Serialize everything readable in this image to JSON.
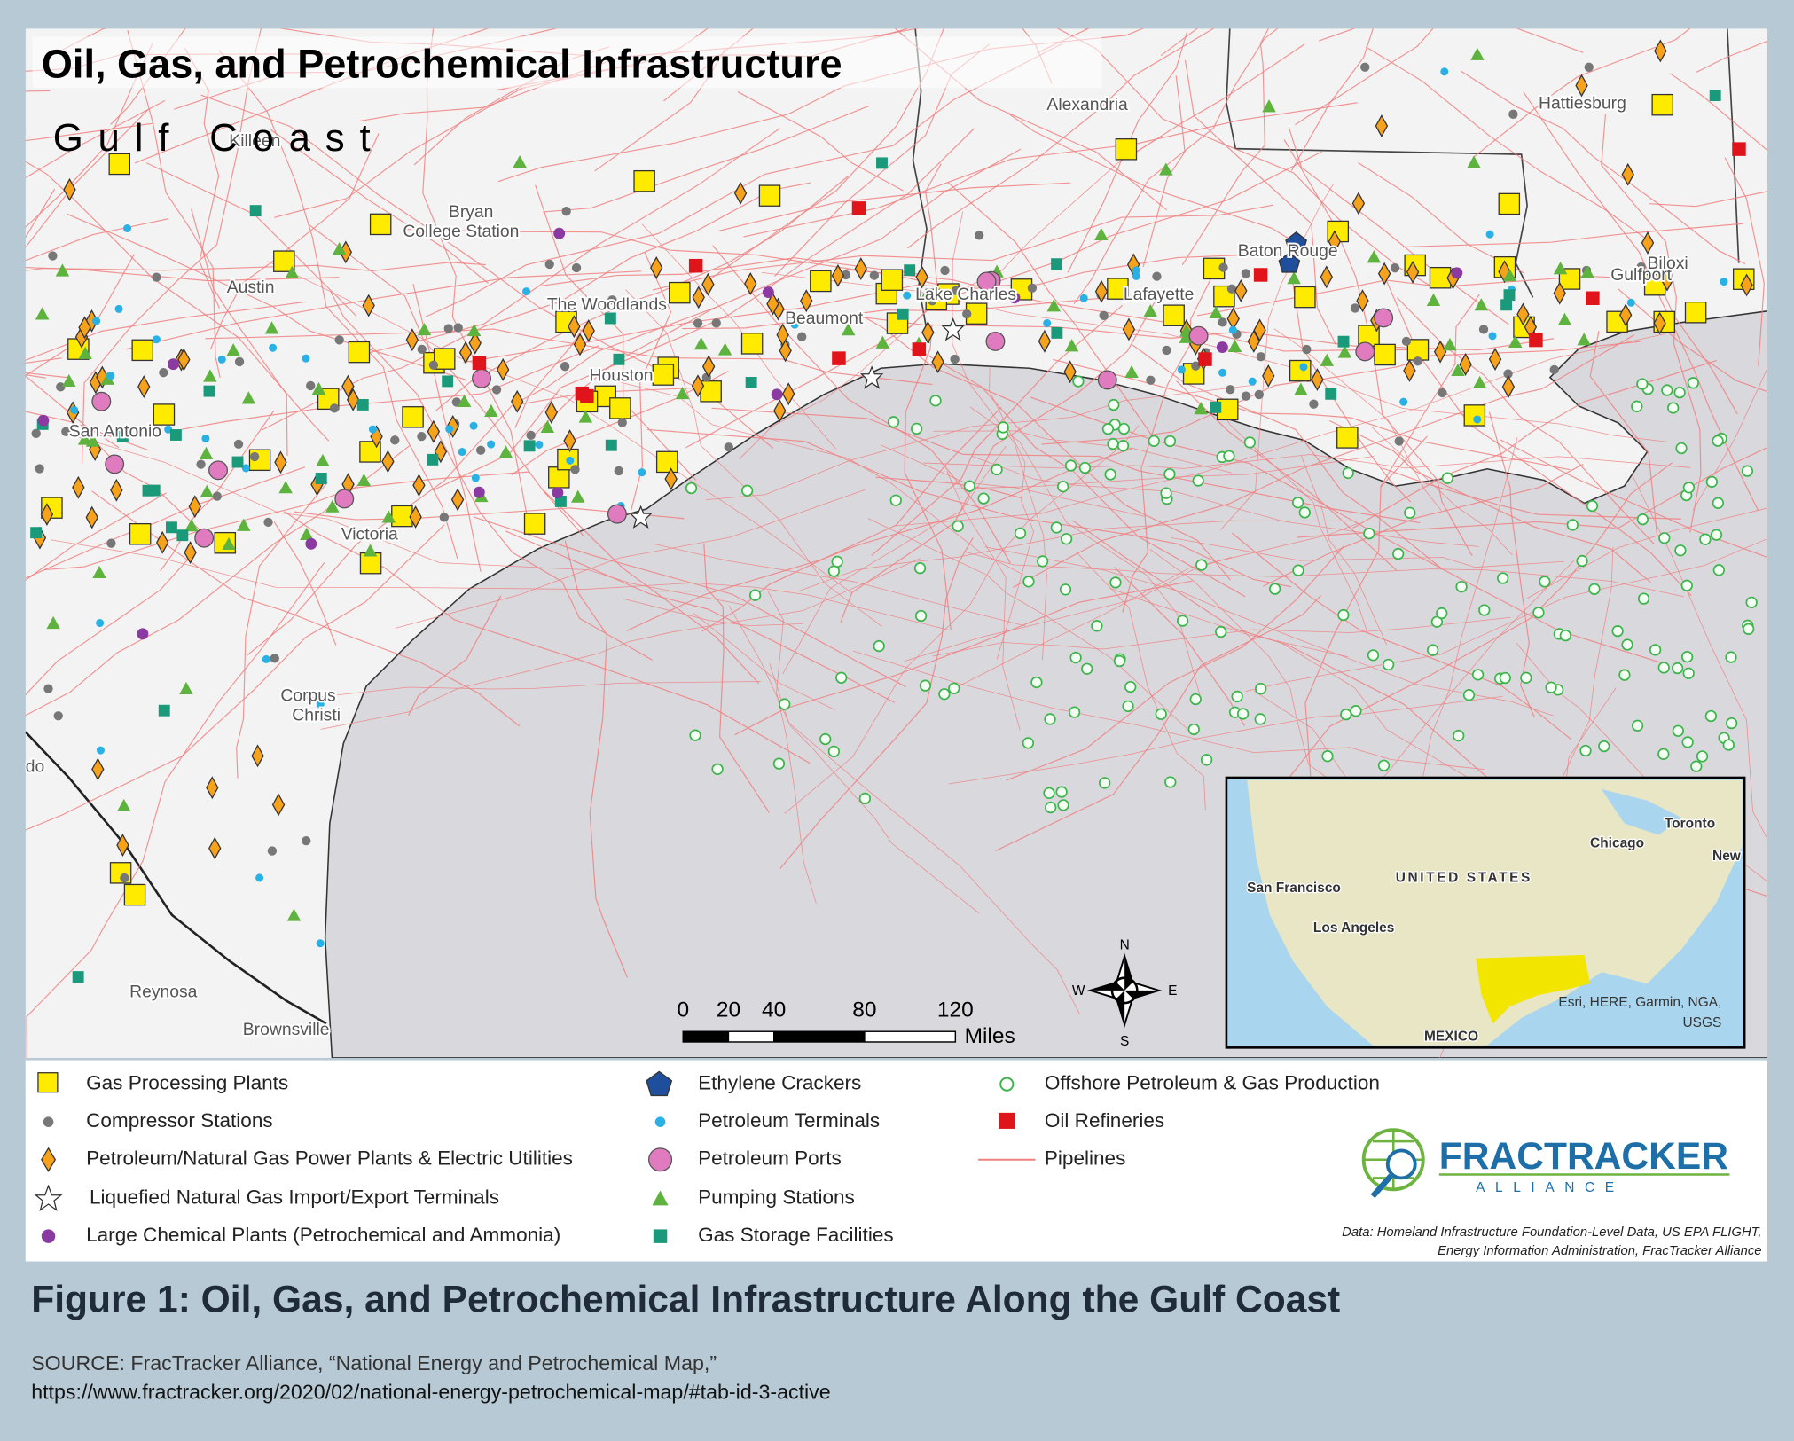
{
  "header": {
    "title": "Oil, Gas, and Petrochemical Infrastructure",
    "subtitle": "Gulf Coast"
  },
  "cities": [
    "Alexandria",
    "Hattiesburg",
    "Killeen",
    "Bryan",
    "College Station",
    "Austin",
    "The Woodlands",
    "Baton Rouge",
    "Gulfport",
    "Biloxi",
    "Beaumont",
    "Lake Charles",
    "Lafayette",
    "Houston",
    "San Antonio",
    "Victoria",
    "Corpus",
    "Christi",
    "Laredo",
    "Reynosa",
    "Brownsville"
  ],
  "legend": [
    "Gas Processing Plants",
    "Compressor Stations",
    "Petroleum/Natural Gas Power Plants & Electric Utilities",
    "Liquefied Natural Gas Import/Export Terminals",
    "Large Chemical Plants (Petrochemical and Ammonia)",
    "Ethylene Crackers",
    "Petroleum Terminals",
    "Petroleum Ports",
    "Pumping Stations",
    "Gas Storage Facilities",
    "Offshore Petroleum & Gas Production",
    "Oil Refineries",
    "Pipelines"
  ],
  "scale_bar": {
    "ticks": [
      0,
      20,
      40,
      80,
      120
    ],
    "unit": "Miles"
  },
  "compass": {
    "n": "N",
    "s": "S",
    "e": "E",
    "w": "W"
  },
  "inset": {
    "labels": [
      "Toronto",
      "Chicago",
      "New",
      "UNITED STATES",
      "San Francisco",
      "Los Angeles",
      "MEXICO"
    ],
    "attribution": [
      "Esri, HERE, Garmin, NGA,",
      "USGS"
    ]
  },
  "logo": {
    "name": "FRACTRACKER",
    "tagline": "ALLIANCE"
  },
  "data_note": [
    "Data: Homeland Infrastructure Foundation-Level Data,  US EPA FLIGHT,",
    "Energy Information Administration, FracTracker Alliance"
  ],
  "caption": {
    "title": "Figure 1: Oil, Gas, and Petrochemical Infrastructure Along the Gulf Coast",
    "source": [
      "SOURCE: FracTracker Alliance, “National Energy and Petrochemical Map,”",
      "https://www.fractracker.org/2020/02/national-energy-petrochemical-map/#tab-id-3-active"
    ]
  }
}
